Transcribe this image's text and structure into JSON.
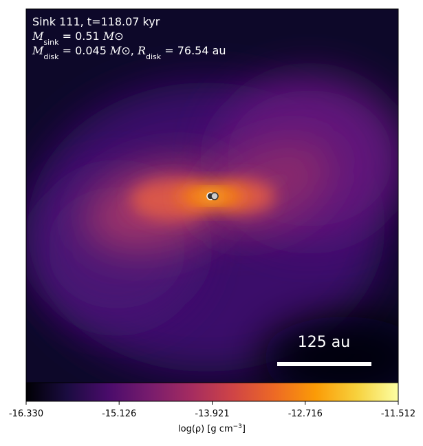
{
  "chart_data": {
    "type": "image",
    "cmap": "inferno",
    "annotations": [
      [
        "Sink 111, t=118.07 kyr"
      ],
      [
        "M",
        "sink",
        " = 0.51 ",
        "M",
        "⊙"
      ],
      [
        "M",
        "disk",
        " = 0.045 ",
        "M",
        "⊙",
        ", ",
        "R",
        "disk",
        " = 76.54 au"
      ]
    ],
    "scale_bar": "125 au",
    "colorbar": {
      "lim": [
        -16.33,
        -11.512
      ],
      "ticks": [
        {
          "value": -16.33,
          "label": "-16.330"
        },
        {
          "value": -15.126,
          "label": "-15.126"
        },
        {
          "value": -13.921,
          "label": "-13.921"
        },
        {
          "value": -12.716,
          "label": "-12.716"
        },
        {
          "value": -11.512,
          "label": "-11.512"
        }
      ],
      "label": [
        "log(ρ) [g cm",
        "−3",
        "]"
      ]
    }
  }
}
